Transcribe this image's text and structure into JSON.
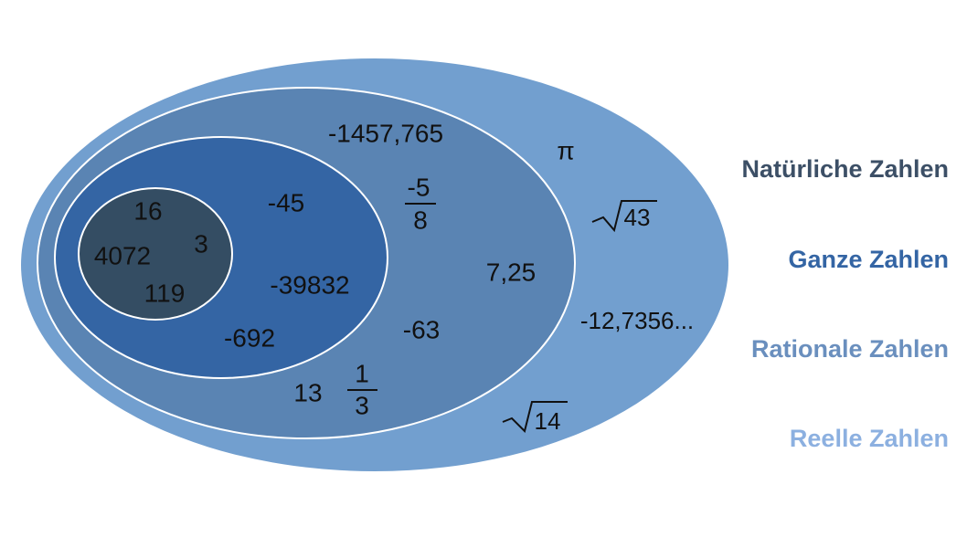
{
  "legend": [
    "Natürliche Zahlen",
    "Ganze Zahlen",
    "Rationale Zahlen",
    "Reelle Zahlen"
  ],
  "sets": {
    "natural": [
      "16",
      "4072",
      "3",
      "119"
    ],
    "integer": [
      "-45",
      "-39832",
      "-692"
    ],
    "rational": [
      "-1457,765",
      {
        "numerator": "-5",
        "denominator": "8"
      },
      "7,25",
      "-63",
      "13",
      {
        "numerator": "1",
        "denominator": "3"
      }
    ],
    "real": [
      "π",
      {
        "radicand": "43"
      },
      "-12,7356...",
      {
        "radicand": "14"
      }
    ]
  }
}
